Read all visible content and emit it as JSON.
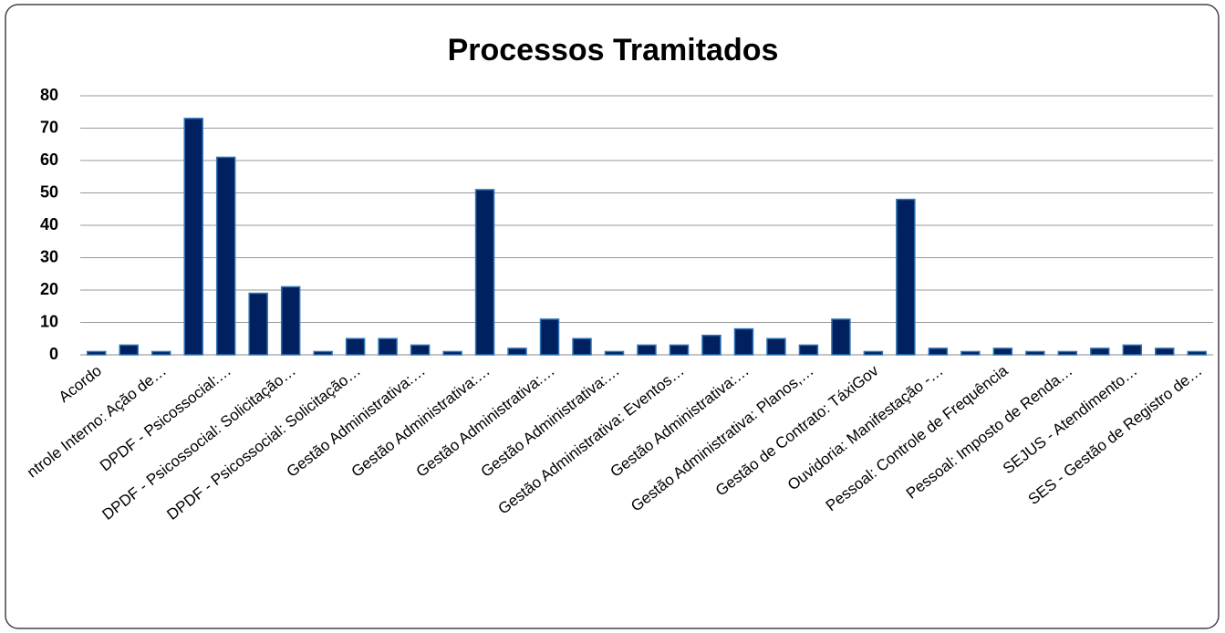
{
  "chart_data": {
    "type": "bar",
    "title": "Processos Tramitados",
    "categories": [
      "Acordo",
      null,
      "ntrole Interno: Ação de…",
      null,
      "DPDF - Psicossocial:…",
      null,
      "DPDF - Psicossocial: Solicitação…",
      null,
      "DPDF - Psicossocial: Solicitação…",
      null,
      "Gestão Administrativa:…",
      null,
      "Gestão Administrativa:…",
      null,
      "Gestão Administrativa:…",
      null,
      "Gestão Administrativa:…",
      null,
      "Gestão Administrativa: Eventos…",
      null,
      "Gestão Administrativa:…",
      null,
      "Gestão Administrativa: Planos,…",
      null,
      "Gestão de Contrato: TáxiGov",
      null,
      "Ouvidoria: Manifestação -…",
      null,
      "Pessoal: Controle de Frequência",
      null,
      "Pessoal: Imposto de Renda…",
      null,
      "SEJUS - Atendimento…",
      null,
      "SES - Gestão de Registro de…"
    ],
    "values": [
      1,
      3,
      1,
      73,
      61,
      19,
      21,
      1,
      5,
      5,
      3,
      1,
      51,
      2,
      11,
      5,
      1,
      3,
      3,
      6,
      8,
      5,
      3,
      11,
      1,
      48,
      2,
      1,
      2,
      1,
      1,
      2,
      3,
      2,
      1
    ],
    "color": "#002060",
    "ylim": [
      0,
      80
    ],
    "yticks": [
      0,
      10,
      20,
      30,
      40,
      50,
      60,
      70,
      80
    ],
    "grid": true
  }
}
